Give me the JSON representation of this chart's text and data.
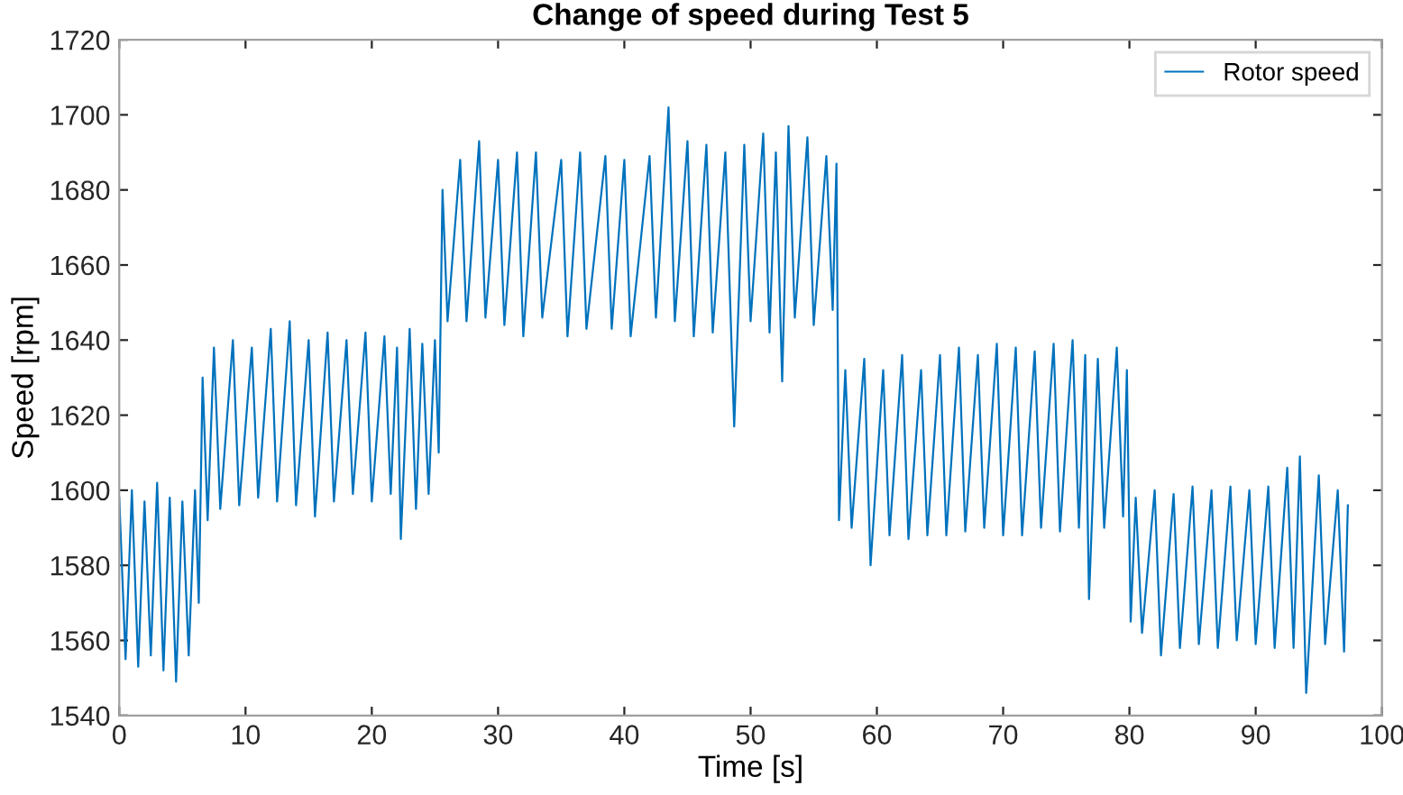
{
  "chart_data": {
    "type": "line",
    "title": "Change of speed during Test 5",
    "xlabel": "Time [s]",
    "ylabel": "Speed [rpm]",
    "series": [
      {
        "name": "Rotor speed",
        "color": "#0072bd",
        "x": [
          0,
          0.5,
          1,
          1.5,
          2,
          2.5,
          3,
          3.5,
          4,
          4.5,
          5,
          5.5,
          6,
          6.3,
          6.6,
          7,
          7.5,
          8,
          9,
          9.5,
          10.5,
          11,
          12,
          12.5,
          13.5,
          14,
          15,
          15.5,
          16.5,
          17,
          18,
          18.5,
          19.5,
          20,
          21,
          21.5,
          22,
          22.3,
          23,
          23.5,
          24,
          24.5,
          25,
          25.3,
          25.6,
          26,
          27,
          27.5,
          28.5,
          29,
          30,
          30.5,
          31.5,
          32,
          33,
          33.5,
          35,
          35.5,
          36.5,
          37,
          38.5,
          39,
          40,
          40.5,
          42,
          42.5,
          43.5,
          44,
          45,
          45.5,
          46.5,
          47,
          48,
          48.7,
          49.5,
          50,
          51,
          51.5,
          52,
          52.5,
          53,
          53.5,
          54.5,
          55,
          56,
          56.5,
          56.8,
          57,
          57.5,
          58,
          59,
          59.5,
          60.5,
          61,
          62,
          62.5,
          63.5,
          64,
          65,
          65.5,
          66.5,
          67,
          68,
          68.5,
          69.5,
          70,
          71,
          71.5,
          72.5,
          73,
          74,
          74.5,
          75.5,
          76,
          76.5,
          76.8,
          77.5,
          78,
          79,
          79.5,
          79.8,
          80.1,
          80.5,
          81,
          82,
          82.5,
          83.5,
          84,
          85,
          85.5,
          86.5,
          87,
          88,
          88.5,
          89.5,
          90,
          91,
          91.5,
          92.5,
          93,
          93.5,
          94,
          95,
          95.5,
          96.5,
          97,
          97.3
        ],
        "values": [
          1598,
          1555,
          1600,
          1553,
          1597,
          1556,
          1602,
          1552,
          1598,
          1549,
          1597,
          1556,
          1600,
          1570,
          1630,
          1592,
          1638,
          1595,
          1640,
          1596,
          1638,
          1598,
          1643,
          1597,
          1645,
          1596,
          1640,
          1593,
          1642,
          1597,
          1640,
          1599,
          1642,
          1597,
          1641,
          1599,
          1638,
          1587,
          1643,
          1595,
          1639,
          1599,
          1640,
          1610,
          1680,
          1645,
          1688,
          1645,
          1693,
          1646,
          1688,
          1644,
          1690,
          1641,
          1690,
          1646,
          1688,
          1641,
          1690,
          1643,
          1689,
          1643,
          1688,
          1641,
          1689,
          1646,
          1702,
          1645,
          1693,
          1641,
          1692,
          1642,
          1690,
          1617,
          1692,
          1645,
          1695,
          1642,
          1690,
          1629,
          1697,
          1646,
          1694,
          1644,
          1689,
          1648,
          1687,
          1592,
          1632,
          1590,
          1635,
          1580,
          1632,
          1588,
          1636,
          1587,
          1632,
          1588,
          1636,
          1588,
          1638,
          1589,
          1636,
          1590,
          1639,
          1588,
          1638,
          1588,
          1637,
          1590,
          1639,
          1589,
          1640,
          1590,
          1636,
          1571,
          1635,
          1590,
          1638,
          1593,
          1632,
          1565,
          1598,
          1562,
          1600,
          1556,
          1599,
          1558,
          1601,
          1559,
          1600,
          1558,
          1601,
          1560,
          1600,
          1559,
          1601,
          1558,
          1606,
          1558,
          1609,
          1546,
          1604,
          1559,
          1600,
          1557,
          1596
        ]
      }
    ],
    "xlim": [
      0,
      100
    ],
    "xticks": [
      0,
      10,
      20,
      30,
      40,
      50,
      60,
      70,
      80,
      90,
      100
    ],
    "ylim": [
      1540,
      1720
    ],
    "yticks": [
      1540,
      1560,
      1580,
      1600,
      1620,
      1640,
      1660,
      1680,
      1700,
      1720
    ],
    "grid": false,
    "legend": "top right",
    "marker": "none",
    "line_style": "solid"
  }
}
